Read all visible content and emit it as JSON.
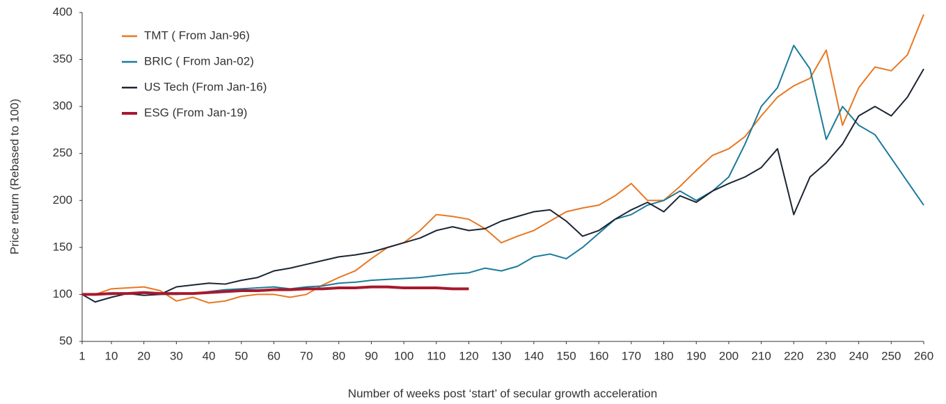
{
  "chart_data": {
    "type": "line",
    "x_label": "Number of weeks post ‘start’ of secular growth acceleration",
    "y_label": "Price return (Rebased to 100)",
    "x": [
      1,
      5,
      10,
      15,
      20,
      25,
      30,
      35,
      40,
      45,
      50,
      55,
      60,
      65,
      70,
      75,
      80,
      85,
      90,
      95,
      100,
      105,
      110,
      115,
      120,
      125,
      130,
      135,
      140,
      145,
      150,
      155,
      160,
      165,
      170,
      175,
      180,
      185,
      190,
      195,
      200,
      205,
      210,
      215,
      220,
      225,
      230,
      235,
      240,
      245,
      250,
      255,
      260
    ],
    "series": [
      {
        "name": "TMT ( From Jan-96)",
        "color": "#e87722",
        "values": [
          100,
          100,
          106,
          107,
          108,
          104,
          93,
          97,
          91,
          93,
          98,
          100,
          100,
          97,
          100,
          110,
          118,
          125,
          138,
          150,
          155,
          168,
          185,
          183,
          180,
          170,
          155,
          162,
          168,
          178,
          188,
          192,
          195,
          205,
          218,
          200,
          200,
          215,
          232,
          248,
          255,
          268,
          290,
          310,
          322,
          330,
          360,
          280,
          320,
          342,
          338,
          355,
          398
        ]
      },
      {
        "name": "BRIC ( From Jan-02)",
        "color": "#1a7a9a",
        "values": [
          100,
          100,
          100,
          101,
          102,
          100,
          100,
          101,
          103,
          105,
          106,
          107,
          108,
          106,
          108,
          109,
          112,
          113,
          115,
          116,
          117,
          118,
          120,
          122,
          123,
          128,
          125,
          130,
          140,
          143,
          138,
          150,
          165,
          180,
          185,
          195,
          200,
          210,
          200,
          210,
          225,
          260,
          300,
          320,
          365,
          340,
          265,
          300,
          280,
          270,
          245,
          220,
          195
        ]
      },
      {
        "name": "US Tech (From Jan-16)",
        "color": "#1b2433",
        "values": [
          100,
          92,
          97,
          101,
          99,
          100,
          108,
          110,
          112,
          111,
          115,
          118,
          125,
          128,
          132,
          136,
          140,
          142,
          145,
          150,
          155,
          160,
          168,
          172,
          168,
          170,
          178,
          183,
          188,
          190,
          178,
          162,
          168,
          180,
          190,
          198,
          188,
          205,
          198,
          210,
          218,
          225,
          235,
          255,
          185,
          225,
          240,
          260,
          290,
          300,
          290,
          310,
          340
        ]
      },
      {
        "name": "ESG (From Jan-19)",
        "color": "#a6192e",
        "width": 4,
        "values": [
          100,
          100,
          101,
          101,
          102,
          101,
          101,
          101,
          102,
          103,
          104,
          104,
          105,
          105,
          106,
          106,
          107,
          107,
          108,
          108,
          107,
          107,
          107,
          106,
          106,
          null,
          null,
          null,
          null,
          null,
          null,
          null,
          null,
          null,
          null,
          null,
          null,
          null,
          null,
          null,
          null,
          null,
          null,
          null,
          null,
          null,
          null,
          null,
          null,
          null,
          null,
          null,
          null
        ]
      }
    ],
    "xlim": [
      1,
      260
    ],
    "xticks": [
      1,
      10,
      20,
      30,
      40,
      50,
      60,
      70,
      80,
      90,
      100,
      110,
      120,
      130,
      140,
      150,
      160,
      170,
      180,
      190,
      200,
      210,
      220,
      230,
      240,
      250,
      260
    ],
    "ylim": [
      50,
      400
    ],
    "yticks": [
      50,
      100,
      150,
      200,
      250,
      300,
      350,
      400
    ],
    "legend": "top-left",
    "grid": false
  }
}
